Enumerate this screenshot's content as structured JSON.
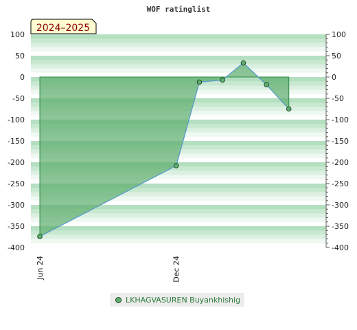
{
  "chart_data": {
    "type": "area",
    "title": "WOF ratinglist",
    "badge": "2024–2025",
    "ylim": [
      -400,
      100
    ],
    "yticks": [
      100,
      50,
      0,
      -50,
      -100,
      -150,
      -200,
      -250,
      -300,
      -350,
      -400
    ],
    "xticks": [
      {
        "label": "Jun 24",
        "date": "2024-06-01"
      },
      {
        "label": "Dec 24",
        "date": "2024-12-01"
      }
    ],
    "xlim": [
      "2024-05-20",
      "2025-06-20"
    ],
    "series": [
      {
        "name": "LKHAGVASUREN Buyankhishig",
        "color": "#5fae6f",
        "line_color": "#5b9bd5",
        "points": [
          {
            "x": "2024-06-01",
            "y": -374
          },
          {
            "x": "2024-12-01",
            "y": -208
          },
          {
            "x": "2025-01-01",
            "y": -12
          },
          {
            "x": "2025-02-01",
            "y": -7
          },
          {
            "x": "2025-03-01",
            "y": 33
          },
          {
            "x": "2025-04-01",
            "y": -18
          },
          {
            "x": "2025-05-01",
            "y": -75
          }
        ]
      }
    ],
    "grid": true,
    "legend": "bottom"
  }
}
